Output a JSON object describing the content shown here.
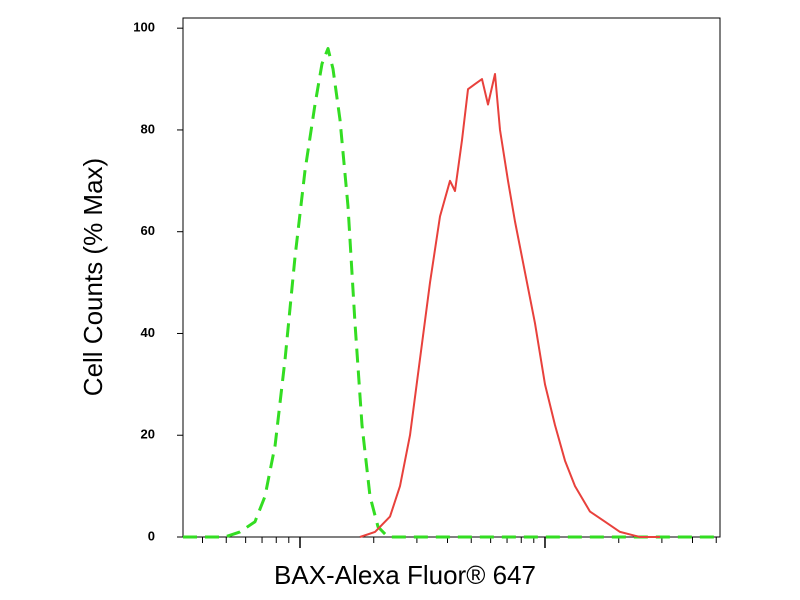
{
  "chart_data": {
    "type": "line",
    "xlabel": "BAX-Alexa Fluor® 647",
    "ylabel": "Cell Counts (% Max)",
    "xscale": "log",
    "xlim": [
      333,
      51800
    ],
    "xticks": [
      1000,
      10000
    ],
    "xminorticks": [
      400,
      500,
      600,
      700,
      800,
      900,
      2000,
      3000,
      4000,
      5000,
      6000,
      7000,
      8000,
      9000,
      20000,
      30000,
      40000,
      50000
    ],
    "ylim": [
      0,
      102
    ],
    "yticks": [
      0,
      20,
      40,
      60,
      80,
      100
    ],
    "grid": false,
    "series": [
      {
        "color": "#33dd22",
        "dashed": true,
        "x": [
          333,
          494,
          569,
          655,
          720,
          791,
          869,
          954,
          1048,
          1151,
          1230,
          1301,
          1364,
          1457,
          1570,
          1677,
          1791,
          1931,
          2082,
          2287,
          2560,
          51800
        ],
        "values": [
          0,
          0,
          1,
          3,
          8,
          18,
          35,
          55,
          72,
          85,
          93,
          96,
          92,
          82,
          65,
          42,
          22,
          8,
          2,
          0,
          0,
          0
        ]
      },
      {
        "color": "#e8413c",
        "dashed": false,
        "x": [
          1758,
          2024,
          2330,
          2560,
          2812,
          3089,
          3393,
          3728,
          4095,
          4293,
          4584,
          4850,
          5179,
          5534,
          5853,
          6251,
          6551,
          7063,
          7545,
          8286,
          9103,
          10000,
          10984,
          12065,
          13256,
          15265,
          17580,
          20240,
          24420,
          29470
        ],
        "values": [
          0,
          1,
          4,
          10,
          20,
          35,
          50,
          63,
          70,
          68,
          78,
          88,
          89,
          90,
          85,
          91,
          80,
          70,
          62,
          52,
          42,
          30,
          22,
          15,
          10,
          5,
          3,
          1,
          0,
          0
        ]
      }
    ]
  }
}
